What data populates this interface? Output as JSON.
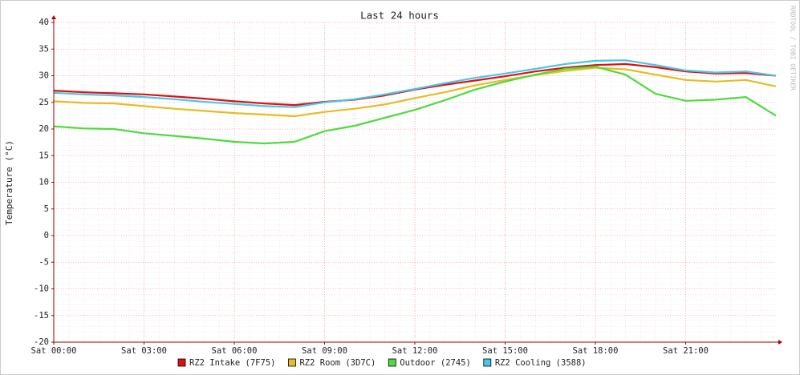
{
  "chart_data": {
    "type": "line",
    "title": "Last 24 hours",
    "y_label": "Temperature (°C)",
    "watermark": "RRDTOOL / TOBI OETIKER",
    "x": [
      0,
      1,
      2,
      3,
      4,
      5,
      6,
      7,
      8,
      9,
      10,
      11,
      12,
      13,
      14,
      15,
      16,
      17,
      18,
      19,
      20,
      21,
      22,
      23,
      24
    ],
    "xlim": [
      0,
      24
    ],
    "xticks": [
      {
        "value": 0,
        "label": "Sat 00:00"
      },
      {
        "value": 3,
        "label": "Sat 03:00"
      },
      {
        "value": 6,
        "label": "Sat 06:00"
      },
      {
        "value": 9,
        "label": "Sat 09:00"
      },
      {
        "value": 12,
        "label": "Sat 12:00"
      },
      {
        "value": 15,
        "label": "Sat 15:00"
      },
      {
        "value": 18,
        "label": "Sat 18:00"
      },
      {
        "value": 21,
        "label": "Sat 21:00"
      }
    ],
    "ylim": [
      -20,
      40
    ],
    "yticks": [
      -20,
      -15,
      -10,
      -5,
      0,
      5,
      10,
      15,
      20,
      25,
      30,
      35,
      40
    ],
    "grid": true,
    "series": [
      {
        "name": "RZ2 Intake (7F75)",
        "color": "#e01010",
        "values": [
          27.2,
          26.9,
          26.7,
          26.5,
          26.1,
          25.7,
          25.2,
          24.8,
          24.5,
          25.1,
          25.5,
          26.3,
          27.4,
          28.3,
          29.1,
          29.9,
          30.8,
          31.5,
          32.0,
          32.2,
          31.6,
          30.8,
          30.4,
          30.5,
          30.0
        ]
      },
      {
        "name": "RZ2 Room (3D7C)",
        "color": "#e8bc22",
        "values": [
          25.2,
          24.9,
          24.8,
          24.3,
          23.8,
          23.4,
          23.0,
          22.7,
          22.4,
          23.2,
          23.8,
          24.6,
          25.8,
          26.9,
          28.2,
          29.2,
          30.1,
          30.9,
          31.5,
          31.2,
          30.2,
          29.2,
          28.9,
          29.2,
          28.0
        ]
      },
      {
        "name": "Outdoor (2745)",
        "color": "#4cdc3c",
        "values": [
          20.5,
          20.1,
          20.0,
          19.2,
          18.7,
          18.2,
          17.6,
          17.3,
          17.6,
          19.6,
          20.6,
          22.1,
          23.6,
          25.4,
          27.4,
          28.9,
          30.2,
          31.3,
          31.7,
          30.2,
          26.6,
          25.3,
          25.5,
          26.0,
          22.5
        ]
      },
      {
        "name": "RZ2 Cooling (3588)",
        "color": "#46c8ec",
        "values": [
          26.8,
          26.5,
          26.3,
          26.0,
          25.6,
          25.1,
          24.7,
          24.3,
          24.1,
          25.0,
          25.6,
          26.5,
          27.5,
          28.6,
          29.6,
          30.4,
          31.3,
          32.2,
          32.8,
          32.9,
          32.0,
          31.0,
          30.6,
          30.8,
          30.0
        ]
      }
    ]
  }
}
